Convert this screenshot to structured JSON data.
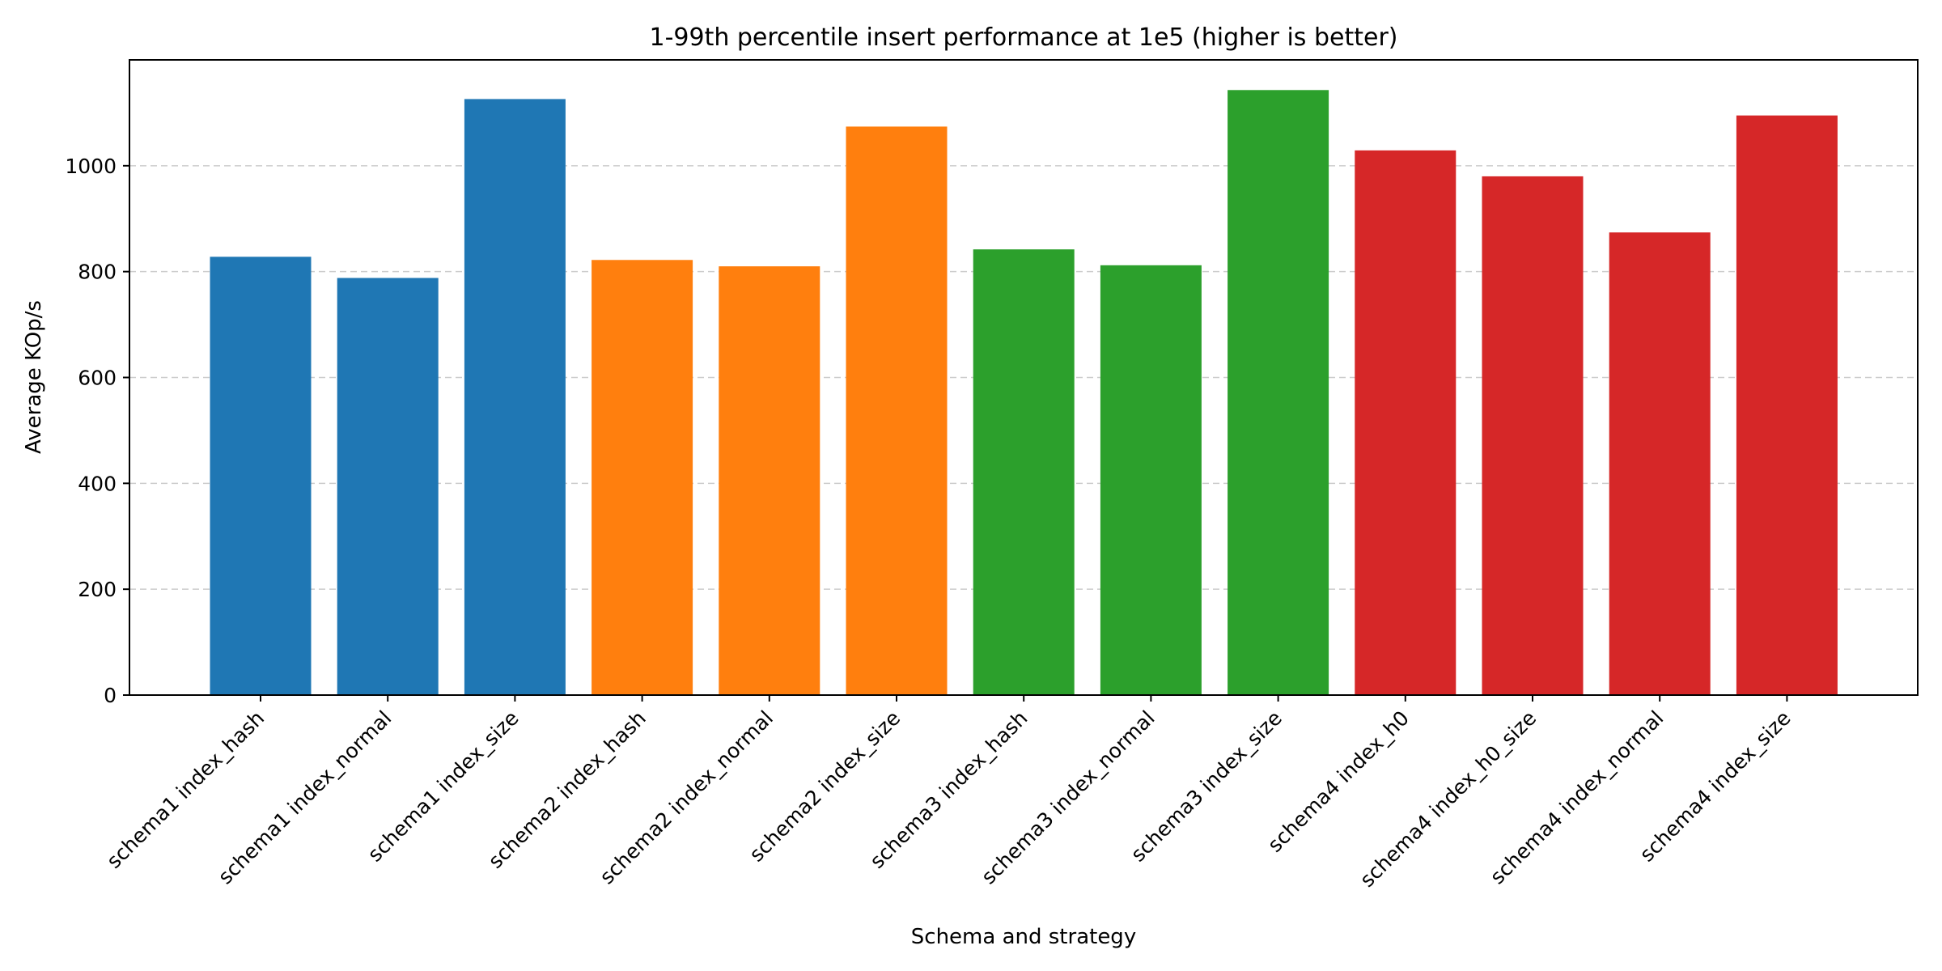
{
  "chart_data": {
    "type": "bar",
    "title": "1-99th percentile insert performance at 1e5 (higher is better)",
    "xlabel": "Schema and strategy",
    "ylabel": "Average KOp/s",
    "ylim": [
      0,
      1200
    ],
    "yticks": [
      0,
      200,
      400,
      600,
      800,
      1000
    ],
    "grid": "y-dashed",
    "categories": [
      "schema1 index_hash",
      "schema1 index_normal",
      "schema1 index_size",
      "schema2 index_hash",
      "schema2 index_normal",
      "schema2 index_size",
      "schema3 index_hash",
      "schema3 index_normal",
      "schema3 index_size",
      "schema4 index_h0",
      "schema4 index_h0_size",
      "schema4 index_normal",
      "schema4 index_size"
    ],
    "values": [
      828,
      788,
      1126,
      822,
      810,
      1074,
      842,
      812,
      1143,
      1029,
      980,
      874,
      1095
    ],
    "colors": [
      "#1f77b4",
      "#1f77b4",
      "#1f77b4",
      "#ff7f0e",
      "#ff7f0e",
      "#ff7f0e",
      "#2ca02c",
      "#2ca02c",
      "#2ca02c",
      "#d62728",
      "#d62728",
      "#d62728",
      "#d62728"
    ]
  }
}
